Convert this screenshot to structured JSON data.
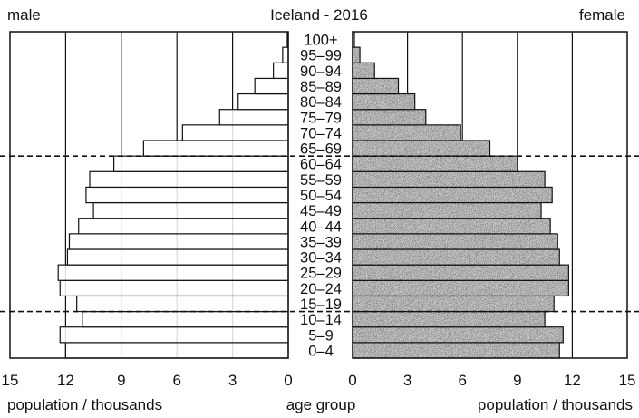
{
  "chart_data": {
    "type": "bar",
    "orientation": "horizontal",
    "title": "Iceland - 2016",
    "left_label": "male",
    "right_label": "female",
    "xlabel_left": "population / thousands",
    "xlabel_center": "age group",
    "xlabel_right": "population / thousands",
    "xlim": [
      0,
      15
    ],
    "xticks": [
      "15",
      "12",
      "9",
      "6",
      "3",
      "0",
      "0",
      "3",
      "6",
      "9",
      "12",
      "15"
    ],
    "grid": true,
    "categories": [
      "0–4",
      "5–9",
      "10–14",
      "15–19",
      "20–24",
      "25–29",
      "30–34",
      "35–39",
      "40–44",
      "45–49",
      "50–54",
      "55–59",
      "60–64",
      "65–69",
      "70–74",
      "75–79",
      "80–84",
      "85–89",
      "90–94",
      "95–99",
      "100+"
    ],
    "series": [
      {
        "name": "male",
        "values": [
          12.0,
          12.3,
          11.1,
          11.4,
          12.3,
          12.4,
          11.9,
          11.8,
          11.3,
          10.5,
          10.9,
          10.7,
          9.4,
          7.8,
          5.7,
          3.7,
          2.7,
          1.8,
          0.8,
          0.3,
          0.05
        ]
      },
      {
        "name": "female",
        "values": [
          11.3,
          11.5,
          10.5,
          11.0,
          11.8,
          11.8,
          11.3,
          11.2,
          10.8,
          10.3,
          10.9,
          10.5,
          9.0,
          7.5,
          5.9,
          4.0,
          3.4,
          2.5,
          1.2,
          0.4,
          0.1
        ]
      }
    ],
    "dividers_between": [
      [
        "10–14",
        "15–19"
      ],
      [
        "60–64",
        "65–69"
      ]
    ]
  },
  "colors": {
    "female_fill": "#b9b9b9",
    "male_fill": "#ffffff",
    "line": "#111111"
  }
}
